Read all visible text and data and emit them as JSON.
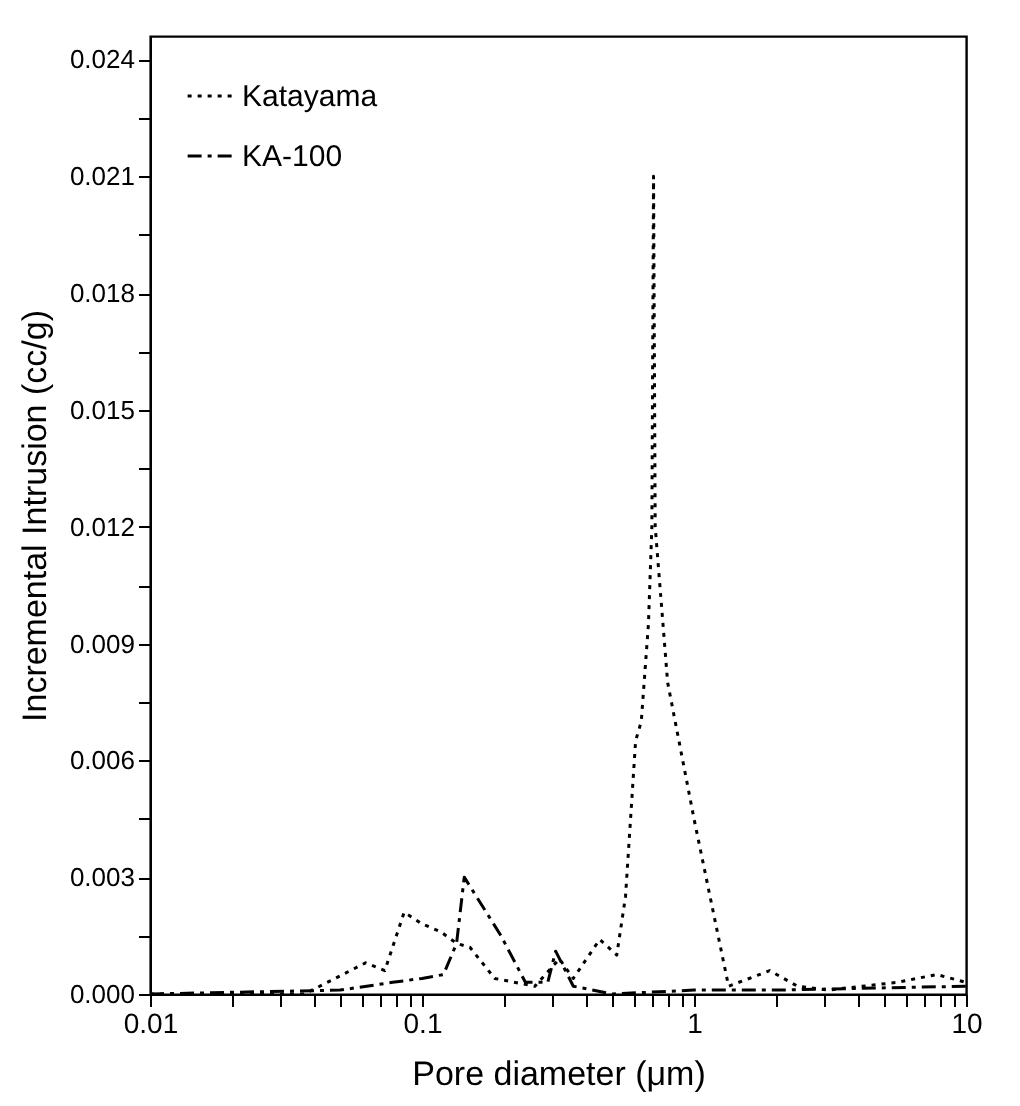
{
  "chart_data": {
    "type": "line",
    "xlabel": "Pore diameter (μm)",
    "ylabel": "Incremental Intrusion (cc/g)",
    "log": "x",
    "legend": "top left",
    "grid": false,
    "xlim": [
      0.01,
      10
    ],
    "ylim": [
      0,
      0.0246
    ],
    "xticks": [
      {
        "value": 0.01,
        "label": "0.01"
      },
      {
        "value": 0.02,
        "label": null
      },
      {
        "value": 0.03,
        "label": null
      },
      {
        "value": 0.04,
        "label": null
      },
      {
        "value": 0.05,
        "label": null
      },
      {
        "value": 0.06,
        "label": null
      },
      {
        "value": 0.07,
        "label": null
      },
      {
        "value": 0.08,
        "label": null
      },
      {
        "value": 0.09,
        "label": null
      },
      0.1,
      {
        "value": 0.2,
        "label": null
      },
      {
        "value": 0.3,
        "label": null
      },
      {
        "value": 0.4,
        "label": null
      },
      {
        "value": 0.5,
        "label": null
      },
      {
        "value": 0.6,
        "label": null
      },
      {
        "value": 0.7,
        "label": null
      },
      {
        "value": 0.8,
        "label": null
      },
      {
        "value": 0.9,
        "label": null
      },
      {
        "value": 1,
        "label": "1"
      },
      {
        "value": 2,
        "label": null
      },
      {
        "value": 3,
        "label": null
      },
      {
        "value": 4,
        "label": null
      },
      {
        "value": 5,
        "label": null
      },
      {
        "value": 6,
        "label": null
      },
      {
        "value": 7,
        "label": null
      },
      {
        "value": 8,
        "label": null
      },
      {
        "value": 9,
        "label": null
      },
      {
        "value": 10,
        "label": "10"
      }
    ],
    "yticks": [
      {
        "value": 0,
        "label": "0.000"
      },
      {
        "value": 0.0015,
        "label": null
      },
      0.003,
      {
        "value": 0.0045,
        "label": null
      },
      0.006,
      {
        "value": 0.0075,
        "label": null
      },
      0.009,
      {
        "value": 0.0105,
        "label": null
      },
      0.012,
      {
        "value": 0.0135,
        "label": null
      },
      0.015,
      {
        "value": 0.0165,
        "label": null
      },
      0.018,
      {
        "value": 0.0195,
        "label": null
      },
      0.021,
      {
        "value": 0.0225,
        "label": null
      },
      0.024
    ],
    "series": [
      {
        "name": "Katayama",
        "color": "#000000",
        "line_style": "dotted",
        "x": [
          0.01,
          0.037,
          0.062,
          0.073,
          0.086,
          0.1,
          0.117,
          0.134,
          0.15,
          0.185,
          0.26,
          0.32,
          0.36,
          0.45,
          0.52,
          0.56,
          0.61,
          0.64,
          0.68,
          0.7,
          0.71,
          0.72,
          0.8,
          1.0,
          1.34,
          1.9,
          2.4,
          3.1,
          5.6,
          7.8,
          10
        ],
        "values": [
          0,
          0,
          0.0008,
          0.0006,
          0.0021,
          0.0018,
          0.0016,
          0.0013,
          0.0012,
          0.0004,
          0.0002,
          0.0009,
          0.0004,
          0.0014,
          0.001,
          0.0025,
          0.0065,
          0.007,
          0.0095,
          0.012,
          0.021,
          0.012,
          0.008,
          0.0045,
          0.0002,
          0.0006,
          0.0002,
          0.0001,
          0.0003,
          0.0005,
          0.0003
        ]
      },
      {
        "name": "KA-100",
        "color": "#000000",
        "line_style": "dashed",
        "x": [
          0.01,
          0.05,
          0.078,
          0.1,
          0.12,
          0.134,
          0.143,
          0.195,
          0.24,
          0.29,
          0.31,
          0.36,
          0.5,
          1,
          2,
          10
        ],
        "values": [
          0,
          0.0001,
          0.0003,
          0.0004,
          0.0005,
          0.0013,
          0.003,
          0.0015,
          0.0003,
          0.0003,
          0.0011,
          0.0002,
          0,
          0.0001,
          0.0001,
          0.0002
        ]
      }
    ]
  }
}
